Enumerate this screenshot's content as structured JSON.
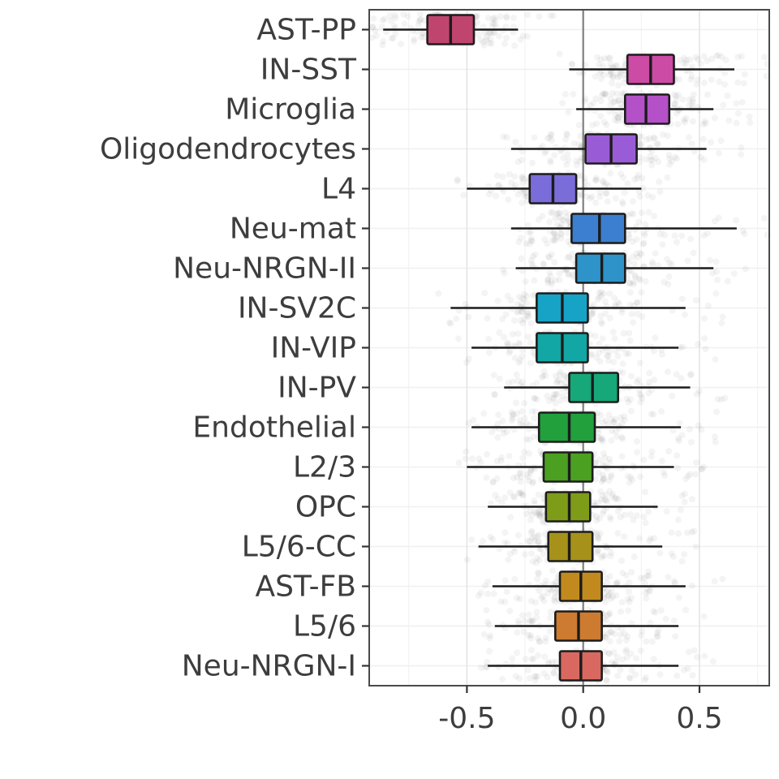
{
  "figure": {
    "title": "",
    "background_color": "#ffffff"
  },
  "style": {
    "axis_text_color": "#3d3d3d",
    "panel_border_color": "#4a4a4a",
    "grid_major_color": "#e4e4e4",
    "grid_minor_color": "#f3f3f3",
    "zero_line_color": "#7f7f7f",
    "box_outline_color": "#1c1c1c",
    "whisker_color": "#1c1c1c",
    "jitter_color": "rgba(70,70,70,0.06)"
  },
  "chart_data": {
    "type": "boxplot",
    "orientation": "horizontal",
    "title": "",
    "xlabel": "",
    "ylabel": "",
    "xlim": [
      -0.92,
      0.8
    ],
    "xticks": [
      -0.5,
      0.0,
      0.5
    ],
    "xtick_labels": [
      "-0.5",
      "0.0",
      "0.5"
    ],
    "xminor_ticks": [
      -0.75,
      -0.25,
      0.25,
      0.75
    ],
    "reference_line_x": 0.0,
    "grid": true,
    "legend": false,
    "jitter_points": true,
    "categories": [
      "AST-PP",
      "IN-SST",
      "Microglia",
      "Oligodendrocytes",
      "L4",
      "Neu-mat",
      "Neu-NRGN-II",
      "IN-SV2C",
      "IN-VIP",
      "IN-PV",
      "Endothelial",
      "L2/3",
      "OPC",
      "L5/6-CC",
      "AST-FB",
      "L5/6",
      "Neu-NRGN-I"
    ],
    "series": [
      {
        "label": "AST-PP",
        "color": "#c0456e",
        "whisker_low": -0.86,
        "q1": -0.67,
        "median": -0.57,
        "q3": -0.47,
        "whisker_high": -0.28
      },
      {
        "label": "IN-SST",
        "color": "#cc4ba5",
        "whisker_low": -0.06,
        "q1": 0.19,
        "median": 0.29,
        "q3": 0.39,
        "whisker_high": 0.65
      },
      {
        "label": "Microglia",
        "color": "#b450c8",
        "whisker_low": -0.03,
        "q1": 0.18,
        "median": 0.27,
        "q3": 0.37,
        "whisker_high": 0.56
      },
      {
        "label": "Oligodendrocytes",
        "color": "#9a5cd6",
        "whisker_low": -0.31,
        "q1": 0.01,
        "median": 0.12,
        "q3": 0.23,
        "whisker_high": 0.53
      },
      {
        "label": "L4",
        "color": "#7a6cd9",
        "whisker_low": -0.5,
        "q1": -0.23,
        "median": -0.13,
        "q3": -0.03,
        "whisker_high": 0.25
      },
      {
        "label": "Neu-mat",
        "color": "#3c7fd0",
        "whisker_low": -0.31,
        "q1": -0.05,
        "median": 0.07,
        "q3": 0.18,
        "whisker_high": 0.66
      },
      {
        "label": "Neu-NRGN-II",
        "color": "#2d93c9",
        "whisker_low": -0.29,
        "q1": -0.03,
        "median": 0.08,
        "q3": 0.18,
        "whisker_high": 0.56
      },
      {
        "label": "IN-SV2C",
        "color": "#17a3c6",
        "whisker_low": -0.57,
        "q1": -0.2,
        "median": -0.09,
        "q3": 0.02,
        "whisker_high": 0.44
      },
      {
        "label": "IN-VIP",
        "color": "#12a6a4",
        "whisker_low": -0.48,
        "q1": -0.2,
        "median": -0.09,
        "q3": 0.02,
        "whisker_high": 0.41
      },
      {
        "label": "IN-PV",
        "color": "#16a878",
        "whisker_low": -0.34,
        "q1": -0.06,
        "median": 0.04,
        "q3": 0.15,
        "whisker_high": 0.46
      },
      {
        "label": "Endothelial",
        "color": "#21a03c",
        "whisker_low": -0.48,
        "q1": -0.19,
        "median": -0.06,
        "q3": 0.05,
        "whisker_high": 0.42
      },
      {
        "label": "L2/3",
        "color": "#4ba021",
        "whisker_low": -0.5,
        "q1": -0.17,
        "median": -0.06,
        "q3": 0.04,
        "whisker_high": 0.39
      },
      {
        "label": "OPC",
        "color": "#7e9c18",
        "whisker_low": -0.41,
        "q1": -0.16,
        "median": -0.06,
        "q3": 0.03,
        "whisker_high": 0.32
      },
      {
        "label": "L5/6-CC",
        "color": "#a6921a",
        "whisker_low": -0.45,
        "q1": -0.15,
        "median": -0.06,
        "q3": 0.04,
        "whisker_high": 0.34
      },
      {
        "label": "AST-FB",
        "color": "#c28a1e",
        "whisker_low": -0.39,
        "q1": -0.1,
        "median": -0.01,
        "q3": 0.08,
        "whisker_high": 0.44
      },
      {
        "label": "L5/6",
        "color": "#cc7b30",
        "whisker_low": -0.38,
        "q1": -0.12,
        "median": -0.02,
        "q3": 0.08,
        "whisker_high": 0.41
      },
      {
        "label": "Neu-NRGN-I",
        "color": "#d96960",
        "whisker_low": -0.41,
        "q1": -0.1,
        "median": -0.01,
        "q3": 0.08,
        "whisker_high": 0.41
      }
    ]
  }
}
